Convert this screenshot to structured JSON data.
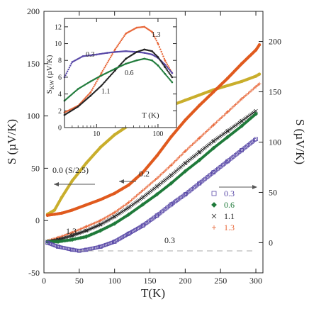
{
  "chart_data": [
    {
      "type": "scatter",
      "xlabel": "T(K)",
      "ylabel": "S (µV/K)",
      "ylabel_right": "S (µV/K)",
      "xlim": [
        0,
        310
      ],
      "ylim": [
        -50,
        200
      ],
      "ylim_right": [
        -30,
        230
      ],
      "x_ticks": [
        0,
        50,
        100,
        150,
        200,
        250,
        300
      ],
      "y_ticks": [
        -50,
        0,
        50,
        100,
        150,
        200
      ],
      "y_ticks_right": [
        0,
        50,
        100,
        150,
        200
      ],
      "grid": false,
      "legend": {
        "placement": "right-middle",
        "entries": [
          {
            "label": "0.3",
            "marker": "square-open",
            "color": "#5a4aa8"
          },
          {
            "label": "0.6",
            "marker": "diamond-filled",
            "color": "#1f7a3a"
          },
          {
            "label": "1.1",
            "marker": "x",
            "color": "#222222"
          },
          {
            "label": "1.3",
            "marker": "plus",
            "color": "#e8683a"
          }
        ]
      },
      "series": [
        {
          "name": "0.0",
          "axis": "left",
          "color": "#c9ae2c",
          "marker": "filled",
          "x": [
            5,
            15,
            25,
            40,
            60,
            80,
            100,
            120,
            140,
            160,
            180,
            200,
            220,
            240,
            260,
            280,
            300,
            305
          ],
          "y": [
            6,
            10,
            22,
            38,
            55,
            70,
            82,
            91,
            98,
            104,
            110,
            115,
            120,
            125,
            129,
            133,
            138,
            140
          ]
        },
        {
          "name": "0.2",
          "axis": "left",
          "color": "#e05a1e",
          "marker": "filled",
          "x": [
            5,
            15,
            25,
            40,
            60,
            80,
            100,
            110,
            120,
            130,
            140,
            160,
            180,
            200,
            220,
            240,
            260,
            280,
            300,
            305
          ],
          "y": [
            5,
            6,
            7,
            10,
            15,
            20,
            26,
            30,
            34,
            40,
            46,
            62,
            80,
            96,
            110,
            123,
            136,
            150,
            163,
            168
          ]
        },
        {
          "name": "1.3",
          "axis": "right",
          "color": "#e8683a",
          "marker": "plus",
          "x": [
            5,
            20,
            40,
            60,
            80,
            100,
            120,
            140,
            160,
            180,
            200,
            220,
            240,
            260,
            280,
            300,
            305
          ],
          "y": [
            2,
            5,
            10,
            16,
            22,
            30,
            40,
            52,
            64,
            77,
            91,
            104,
            117,
            130,
            143,
            155,
            158
          ]
        },
        {
          "name": "1.1",
          "axis": "right",
          "color": "#222222",
          "marker": "x",
          "x": [
            5,
            20,
            40,
            60,
            80,
            100,
            120,
            140,
            160,
            180,
            200,
            220,
            240,
            260,
            280,
            300
          ],
          "y": [
            1,
            3,
            7,
            12,
            18,
            26,
            35,
            45,
            56,
            67,
            79,
            90,
            101,
            111,
            121,
            131
          ]
        },
        {
          "name": "0.6",
          "axis": "right",
          "color": "#1f7a3a",
          "marker": "diamond",
          "x": [
            5,
            20,
            40,
            60,
            80,
            100,
            120,
            140,
            160,
            180,
            200,
            220,
            240,
            260,
            280,
            300
          ],
          "y": [
            1,
            1,
            3,
            6,
            12,
            19,
            28,
            38,
            48,
            59,
            71,
            82,
            94,
            105,
            116,
            128
          ]
        },
        {
          "name": "0.3",
          "axis": "right",
          "color": "#5a4aa8",
          "marker": "square",
          "x": [
            5,
            20,
            40,
            50,
            60,
            80,
            100,
            120,
            140,
            160,
            180,
            200,
            220,
            240,
            260,
            280,
            300
          ],
          "y": [
            0,
            -4,
            -7,
            -8,
            -7,
            -4,
            1,
            9,
            17,
            27,
            38,
            48,
            59,
            70,
            81,
            92,
            103
          ]
        }
      ],
      "annotations": [
        {
          "text": "0.0 (S/2.5)",
          "color": "#222222"
        },
        {
          "text": "0.2",
          "color": "#222222"
        },
        {
          "text": "1.3",
          "color": "#e8683a"
        },
        {
          "text": "0.3",
          "color": "#5a4aa8"
        }
      ]
    },
    {
      "type": "scatter",
      "xlabel": "T (K)",
      "ylabel": "S_KW (µV/K)",
      "ylabel_main": "S",
      "ylabel_sub": "KW",
      "ylabel_unit": " (µV/K)",
      "x_scale": "log",
      "xlim": [
        3,
        200
      ],
      "ylim": [
        0,
        13
      ],
      "x_ticks": [
        10,
        100
      ],
      "x_tick_labels": [
        "10",
        "100"
      ],
      "y_ticks": [
        0,
        2,
        4,
        6,
        8,
        10,
        12
      ],
      "series": [
        {
          "name": "1.3",
          "color": "#e8683a",
          "x": [
            3,
            5,
            8,
            12,
            20,
            30,
            45,
            60,
            80,
            100,
            130,
            170
          ],
          "y": [
            1.8,
            2.6,
            4.2,
            6.5,
            9.3,
            11.2,
            11.9,
            12.0,
            11.4,
            10.0,
            8.0,
            6.5
          ]
        },
        {
          "name": "0.3",
          "color": "#5a4aa8",
          "x": [
            3,
            4,
            6,
            10,
            15,
            20,
            30,
            45,
            60,
            80,
            100,
            130,
            170
          ],
          "y": [
            6.0,
            7.8,
            8.5,
            8.7,
            8.9,
            9.0,
            9.1,
            9.0,
            8.9,
            8.7,
            8.3,
            7.5,
            6.5
          ]
        },
        {
          "name": "1.1",
          "color": "#222222",
          "x": [
            3,
            5,
            8,
            12,
            20,
            30,
            45,
            60,
            80,
            100,
            130,
            170
          ],
          "y": [
            1.5,
            2.5,
            3.8,
            5.0,
            6.8,
            8.2,
            9.0,
            9.3,
            9.1,
            8.4,
            7.2,
            6.0
          ]
        },
        {
          "name": "0.6",
          "color": "#1f7a3a",
          "x": [
            3,
            5,
            8,
            12,
            20,
            30,
            45,
            60,
            80,
            100,
            130,
            170
          ],
          "y": [
            3.2,
            4.6,
            5.5,
            6.2,
            7.0,
            7.6,
            8.0,
            8.2,
            8.0,
            7.4,
            6.4,
            5.4
          ]
        }
      ],
      "annotations": [
        {
          "text": "1.3",
          "color": "#222222"
        },
        {
          "text": "0.3",
          "color": "#222222"
        },
        {
          "text": "0.6",
          "color": "#222222"
        },
        {
          "text": "1.1",
          "color": "#222222"
        }
      ]
    }
  ]
}
